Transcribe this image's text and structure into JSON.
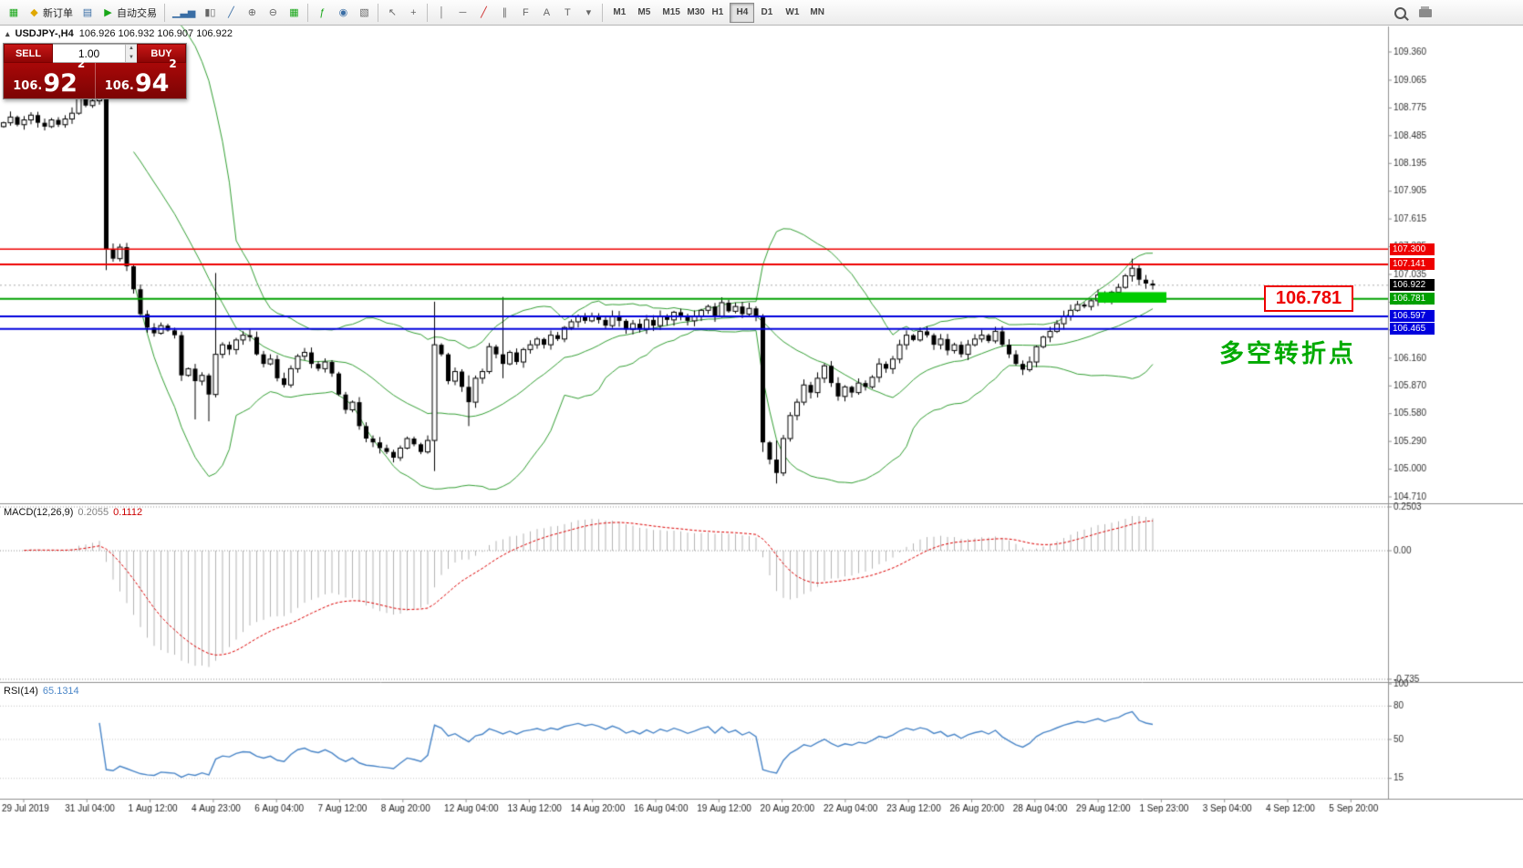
{
  "toolbar": {
    "new_order": "新订单",
    "autotrading": "自动交易",
    "timeframes": [
      "M1",
      "M5",
      "M15",
      "M30",
      "H1",
      "H4",
      "D1",
      "W1",
      "MN"
    ],
    "active_timeframe": "H4",
    "icons": {
      "new_chart": "▦",
      "new_order_diamond": "◆",
      "profiles": "▤",
      "autotrading_play": "▶",
      "chart_bars": "▁▃▅",
      "chart_candles": "▮▯",
      "chart_line": "╱",
      "zoom_in": "⊕",
      "zoom_out": "⊖",
      "tile_windows": "▦",
      "indicators": "ƒ",
      "periods": "◉",
      "templates": "▧",
      "cursor": "↖",
      "crosshair": "+",
      "vertical_line": "│",
      "horizontal_line": "─",
      "trendline": "╱",
      "channel": "∥",
      "fibonacci": "F",
      "text": "A",
      "text_label": "T",
      "shapes": "▾",
      "oneclick_toggle": "▴"
    }
  },
  "symbol_info": {
    "title": "USDJPY-,H4",
    "ohlc": "106.926 106.932 106.907 106.922"
  },
  "one_click": {
    "sell_label": "SELL",
    "buy_label": "BUY",
    "volume": "1.00",
    "bid_prefix": "106.",
    "bid_big": "92",
    "bid_sup": "2",
    "ask_prefix": "106.",
    "ask_big": "94",
    "ask_sup": "2"
  },
  "annotations": {
    "price_label": "106.781",
    "turning_point": "多空转折点"
  },
  "chart_data": {
    "type": "candlestick",
    "symbol": "USDJPY-",
    "timeframe": "H4",
    "open0": 108.58,
    "closes": [
      108.62,
      108.68,
      108.6,
      108.65,
      108.7,
      108.62,
      108.58,
      108.65,
      108.6,
      108.66,
      108.72,
      108.88,
      108.8,
      108.85,
      108.9,
      107.3,
      107.2,
      107.32,
      107.12,
      106.88,
      106.62,
      106.48,
      106.42,
      106.5,
      106.45,
      106.4,
      105.98,
      106.05,
      105.92,
      105.98,
      105.78,
      106.2,
      106.3,
      106.25,
      106.35,
      106.4,
      106.38,
      106.2,
      106.1,
      106.15,
      105.95,
      105.88,
      106.05,
      106.18,
      106.22,
      106.1,
      106.05,
      106.12,
      106.0,
      105.78,
      105.62,
      105.7,
      105.45,
      105.32,
      105.28,
      105.22,
      105.18,
      105.12,
      105.22,
      105.32,
      105.26,
      105.18,
      105.3,
      106.3,
      106.2,
      105.92,
      106.02,
      105.86,
      105.7,
      105.95,
      106.02,
      106.28,
      106.2,
      106.1,
      106.22,
      106.12,
      106.25,
      106.3,
      106.36,
      106.3,
      106.4,
      106.36,
      106.48,
      106.54,
      106.6,
      106.55,
      106.6,
      106.56,
      106.5,
      106.6,
      106.55,
      106.46,
      106.52,
      106.46,
      106.56,
      106.5,
      106.6,
      106.56,
      106.64,
      106.6,
      106.55,
      106.6,
      106.66,
      106.7,
      106.6,
      106.74,
      106.65,
      106.7,
      106.62,
      106.68,
      106.6,
      105.28,
      105.1,
      104.96,
      105.32,
      105.56,
      105.7,
      105.88,
      105.8,
      105.95,
      106.08,
      105.9,
      105.76,
      105.86,
      105.8,
      105.9,
      105.86,
      105.96,
      106.1,
      106.05,
      106.15,
      106.3,
      106.4,
      106.35,
      106.44,
      106.4,
      106.3,
      106.36,
      106.24,
      106.3,
      106.2,
      106.3,
      106.36,
      106.4,
      106.34,
      106.44,
      106.3,
      106.2,
      106.1,
      106.04,
      106.12,
      106.28,
      106.38,
      106.44,
      106.52,
      106.6,
      106.66,
      106.72,
      106.7,
      106.76,
      106.82,
      106.78,
      106.85,
      106.9,
      107.02,
      107.1,
      106.98,
      106.94,
      106.92
    ],
    "wick_overrides": {
      "15": [
        108.95,
        107.08
      ],
      "28": [
        106.1,
        105.52
      ],
      "30": [
        106.0,
        105.5
      ],
      "31": [
        107.05,
        105.75
      ],
      "63": [
        106.75,
        104.98
      ],
      "68": [
        105.98,
        105.45
      ],
      "73": [
        106.8,
        105.95
      ],
      "111": [
        106.62,
        105.18
      ],
      "113": [
        105.3,
        104.85
      ],
      "165": [
        107.2,
        106.96
      ]
    },
    "bollinger": {
      "period": 20,
      "deviation": 2
    },
    "hlines": [
      {
        "price": 107.3,
        "label": "107.300",
        "color": "#ee0000",
        "w": 1.5
      },
      {
        "price": 107.141,
        "label": "107.141",
        "color": "#ee0000",
        "w": 2
      },
      {
        "price": 106.781,
        "label": "106.781",
        "color": "#00a000",
        "w": 2
      },
      {
        "price": 106.597,
        "label": "106.597",
        "color": "#0000dd",
        "w": 2
      },
      {
        "price": 106.465,
        "label": "106.465",
        "color": "#0000dd",
        "w": 2
      }
    ],
    "bid": {
      "price": 106.922,
      "label": "106.922"
    },
    "price_ticks": [
      "109.360",
      "109.065",
      "108.775",
      "108.485",
      "108.195",
      "107.905",
      "107.615",
      "107.325",
      "107.035",
      "106.745",
      "106.455",
      "106.160",
      "105.870",
      "105.580",
      "105.290",
      "105.000",
      "104.710"
    ],
    "highlight_box": {
      "i_from": 160,
      "i_to": 170,
      "price_top": 106.85,
      "price_bottom": 106.74,
      "color": "#00cc00"
    },
    "macd": {
      "name": "MACD(12,26,9)",
      "main_value": "0.2055",
      "signal_value": "0.1112",
      "fast": 12,
      "slow": 26,
      "signal": 9,
      "axis": [
        "0.2503",
        "0.00",
        "-0.735"
      ],
      "axis_values": [
        0.2503,
        0,
        -0.735
      ]
    },
    "rsi": {
      "name": "RSI(14)",
      "value": "65.1314",
      "period": 14,
      "axis": [
        "100",
        "80",
        "50",
        "15"
      ],
      "axis_values": [
        100,
        80,
        50,
        15
      ],
      "levels": [
        80,
        50,
        15
      ]
    },
    "time_labels": [
      "29 Jul 2019",
      "31 Jul 04:00",
      "1 Aug 12:00",
      "4 Aug 23:00",
      "6 Aug 04:00",
      "7 Aug 12:00",
      "8 Aug 20:00",
      "12 Aug 04:00",
      "13 Aug 12:00",
      "14 Aug 20:00",
      "16 Aug 04:00",
      "19 Aug 12:00",
      "20 Aug 20:00",
      "22 Aug 04:00",
      "23 Aug 12:00",
      "26 Aug 20:00",
      "28 Aug 04:00",
      "29 Aug 12:00",
      "1 Sep 23:00",
      "3 Sep 04:00",
      "4 Sep 12:00",
      "5 Sep 20:00"
    ],
    "colors": {
      "bollinger": "#35a035",
      "candle_up": "#ffffff",
      "candle_down": "#000000",
      "candle_border": "#000000",
      "macd_hist": "#b4b4b4",
      "macd_signal": "#dd0000",
      "rsi_line": "#4a86c8",
      "grid_dotted": "#c8c8c8",
      "axis_text": "#333333",
      "separator": "#909090",
      "bid_line": "#aaaaaa"
    }
  }
}
